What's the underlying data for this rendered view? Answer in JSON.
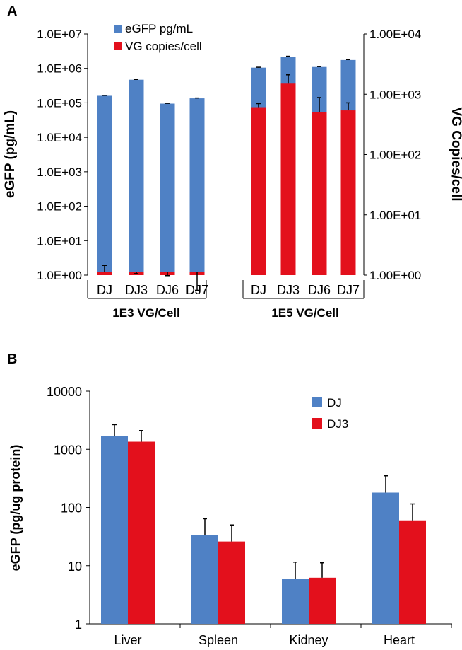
{
  "colors": {
    "blue": "#4f81c5",
    "red": "#e3101c",
    "axis": "#000000"
  },
  "chart_data": [
    {
      "panel_label": "A",
      "type": "bar",
      "subtype": "overlapped-dual-axis-log",
      "categories": [
        "DJ",
        "DJ3",
        "DJ6",
        "DJ7",
        "DJ",
        "DJ3",
        "DJ6",
        "DJ7"
      ],
      "groups": [
        {
          "label": "1E3 VG/Cell",
          "start": 0,
          "end": 3
        },
        {
          "label": "1E5 VG/Cell",
          "start": 4,
          "end": 7
        }
      ],
      "series": [
        {
          "name": "eGFP pg/mL",
          "axis": "left",
          "color": "#4f81c5",
          "values": [
            160000,
            470000,
            95000,
            135000,
            1050000,
            2200000,
            1100000,
            1750000
          ],
          "err_up": [
            165000,
            480000,
            97000,
            138000,
            1080000,
            2250000,
            1130000,
            1800000
          ]
        },
        {
          "name": "VG copies/cell",
          "axis": "right",
          "color": "#e3101c",
          "values": [
            0.82,
            1.0,
            0.52,
            0.15,
            610,
            1500,
            505,
            540
          ],
          "err_up": [
            1.45,
            1.06,
            0.98,
            0.56,
            700,
            2100,
            880,
            720
          ]
        }
      ],
      "yleft": {
        "label": "eGFP (pg/mL)",
        "min": 1,
        "max": 10000000,
        "ticks": [
          "1.0E+00",
          "1.0E+01",
          "1.0E+02",
          "1.0E+03",
          "1.0E+04",
          "1.0E+05",
          "1.0E+06",
          "1.0E+07"
        ]
      },
      "yright": {
        "label": "VG Copies/cell",
        "min": 1,
        "max": 10000,
        "ticks": [
          "1.00E+00",
          "1.00E+01",
          "1.00E+02",
          "1.00E+03",
          "1.00E+04"
        ]
      },
      "legend": [
        "eGFP pg/mL",
        "VG copies/cell"
      ],
      "legend_position": "top-left"
    },
    {
      "panel_label": "B",
      "type": "bar",
      "subtype": "grouped-log",
      "categories": [
        "Liver",
        "Spleen",
        "Kidney",
        "Heart"
      ],
      "series": [
        {
          "name": "DJ",
          "color": "#4f81c5",
          "values": [
            1700,
            34,
            5.9,
            180
          ],
          "err_up": [
            2650,
            64,
            11.5,
            350
          ]
        },
        {
          "name": "DJ3",
          "color": "#e3101c",
          "values": [
            1350,
            26,
            6.2,
            60
          ],
          "err_up": [
            2100,
            50,
            11.2,
            115
          ]
        }
      ],
      "ylabel": "eGFP (pg/ug protein)",
      "yrange": [
        1,
        10000
      ],
      "ticks": [
        "1",
        "10",
        "100",
        "1000",
        "10000"
      ],
      "legend": [
        "DJ",
        "DJ3"
      ],
      "legend_position": "top-right"
    }
  ]
}
